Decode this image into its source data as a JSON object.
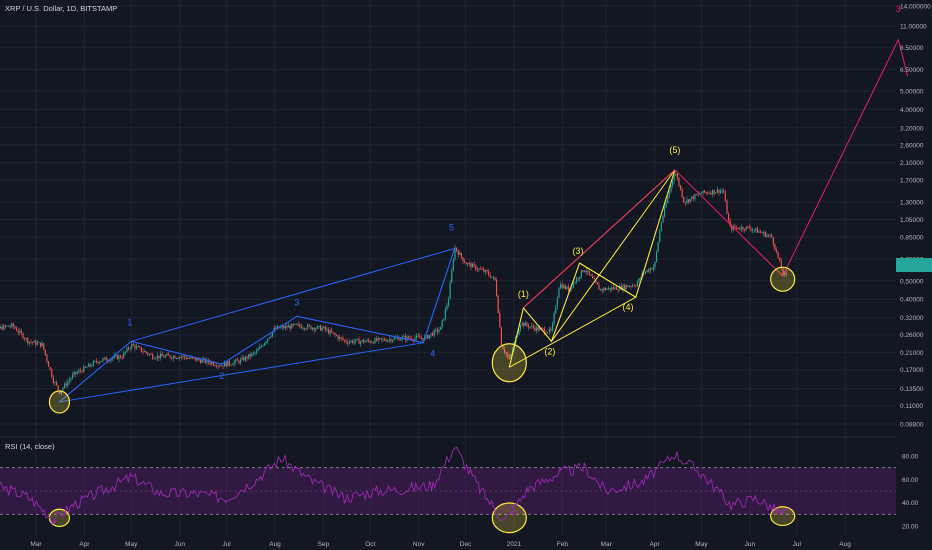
{
  "header": {
    "symbol_title": "XRP / U.S. Dollar, 1D, BITSTAMP"
  },
  "price_badge": "",
  "rsi_title": "RSI (14, close)",
  "colors": {
    "background": "#131722",
    "grid": "#1f2430",
    "up": "#26a69a",
    "down": "#ef5350",
    "blue_wave": "#2962ff",
    "yellow_wave": "#ffeb3b",
    "pink_projection": "#e91e63",
    "rsi_line": "#9c27b0",
    "rsi_band": "#4a1d5c",
    "badge": "#26a69a"
  },
  "chart_data": [
    {
      "type": "candlestick",
      "scale": "log",
      "y_ticks": [
        "14.000000",
        "11.00000",
        "8.50000",
        "6.50000",
        "5.00000",
        "4.00000",
        "3.20000",
        "2.60000",
        "2.10000",
        "1.70000",
        "1.30000",
        "1.05000",
        "0.85000",
        "0.65000",
        "0.50000",
        "0.40000",
        "0.32000",
        "0.26000",
        "0.21000",
        "0.17000",
        "0.13500",
        "0.11000",
        "0.08800"
      ],
      "y_tick_values": [
        14,
        11,
        8.5,
        6.5,
        5,
        4,
        3.2,
        2.6,
        2.1,
        1.7,
        1.3,
        1.05,
        0.85,
        0.65,
        0.5,
        0.4,
        0.32,
        0.26,
        0.21,
        0.17,
        0.135,
        0.11,
        0.088
      ],
      "x_ticks": [
        "Mar",
        "Apr",
        "May",
        "Jun",
        "Jul",
        "Aug",
        "Sep",
        "Oct",
        "Nov",
        "Dec",
        "2021",
        "Feb",
        "Mar",
        "Apr",
        "May",
        "Jun",
        "Jul",
        "Aug"
      ],
      "x_tick_dates": [
        "2020-03-01",
        "2020-04-01",
        "2020-05-01",
        "2020-06-01",
        "2020-07-01",
        "2020-08-01",
        "2020-09-01",
        "2020-10-01",
        "2020-11-01",
        "2020-12-01",
        "2021-01-01",
        "2021-02-01",
        "2021-03-01",
        "2021-04-01",
        "2021-05-01",
        "2021-06-01",
        "2021-07-01",
        "2021-08-01"
      ],
      "price_path": [
        [
          "2020-01-25",
          0.3
        ],
        [
          "2020-02-05",
          0.28
        ],
        [
          "2020-02-15",
          0.29
        ],
        [
          "2020-02-25",
          0.24
        ],
        [
          "2020-03-05",
          0.23
        ],
        [
          "2020-03-12",
          0.15
        ],
        [
          "2020-03-16",
          0.13
        ],
        [
          "2020-03-25",
          0.16
        ],
        [
          "2020-04-10",
          0.19
        ],
        [
          "2020-04-25",
          0.2
        ],
        [
          "2020-05-01",
          0.23
        ],
        [
          "2020-05-15",
          0.2
        ],
        [
          "2020-06-01",
          0.2
        ],
        [
          "2020-06-15",
          0.19
        ],
        [
          "2020-06-28",
          0.18
        ],
        [
          "2020-07-10",
          0.19
        ],
        [
          "2020-07-20",
          0.21
        ],
        [
          "2020-08-01",
          0.28
        ],
        [
          "2020-08-15",
          0.29
        ],
        [
          "2020-09-01",
          0.28
        ],
        [
          "2020-09-15",
          0.24
        ],
        [
          "2020-10-01",
          0.24
        ],
        [
          "2020-10-20",
          0.25
        ],
        [
          "2020-11-05",
          0.25
        ],
        [
          "2020-11-15",
          0.28
        ],
        [
          "2020-11-20",
          0.4
        ],
        [
          "2020-11-24",
          0.75
        ],
        [
          "2020-12-01",
          0.62
        ],
        [
          "2020-12-15",
          0.55
        ],
        [
          "2020-12-20",
          0.5
        ],
        [
          "2020-12-24",
          0.23
        ],
        [
          "2020-12-29",
          0.19
        ],
        [
          "2021-01-05",
          0.3
        ],
        [
          "2021-01-15",
          0.28
        ],
        [
          "2021-01-25",
          0.27
        ],
        [
          "2021-01-30",
          0.48
        ],
        [
          "2021-02-05",
          0.45
        ],
        [
          "2021-02-15",
          0.58
        ],
        [
          "2021-02-25",
          0.45
        ],
        [
          "2021-03-10",
          0.46
        ],
        [
          "2021-03-20",
          0.48
        ],
        [
          "2021-03-25",
          0.55
        ],
        [
          "2021-04-01",
          0.6
        ],
        [
          "2021-04-05",
          1.0
        ],
        [
          "2021-04-14",
          1.9
        ],
        [
          "2021-04-20",
          1.3
        ],
        [
          "2021-05-01",
          1.45
        ],
        [
          "2021-05-15",
          1.5
        ],
        [
          "2021-05-19",
          0.95
        ],
        [
          "2021-06-01",
          0.95
        ],
        [
          "2021-06-15",
          0.85
        ],
        [
          "2021-06-22",
          0.55
        ],
        [
          "2021-06-25",
          0.52
        ]
      ],
      "rsi_levels": [
        80,
        60,
        40,
        20
      ],
      "rsi_bands": [
        70,
        30
      ],
      "rsi_points": [
        [
          "2020-01-25",
          60
        ],
        [
          "2020-02-10",
          52
        ],
        [
          "2020-02-25",
          45
        ],
        [
          "2020-03-13",
          25
        ],
        [
          "2020-03-25",
          38
        ],
        [
          "2020-04-15",
          52
        ],
        [
          "2020-05-01",
          62
        ],
        [
          "2020-05-20",
          48
        ],
        [
          "2020-06-10",
          48
        ],
        [
          "2020-07-01",
          44
        ],
        [
          "2020-07-20",
          60
        ],
        [
          "2020-08-05",
          78
        ],
        [
          "2020-08-25",
          58
        ],
        [
          "2020-09-15",
          44
        ],
        [
          "2020-10-05",
          50
        ],
        [
          "2020-10-25",
          52
        ],
        [
          "2020-11-10",
          55
        ],
        [
          "2020-11-24",
          88
        ],
        [
          "2020-12-10",
          52
        ],
        [
          "2020-12-26",
          24
        ],
        [
          "2021-01-10",
          52
        ],
        [
          "2021-01-31",
          66
        ],
        [
          "2021-02-15",
          70
        ],
        [
          "2021-03-01",
          50
        ],
        [
          "2021-03-25",
          58
        ],
        [
          "2021-04-14",
          82
        ],
        [
          "2021-05-01",
          65
        ],
        [
          "2021-05-20",
          38
        ],
        [
          "2021-06-05",
          44
        ],
        [
          "2021-06-22",
          30
        ],
        [
          "2021-06-26",
          32
        ]
      ],
      "annotations": [
        {
          "label": "1",
          "date": "2020-04-30",
          "price": 0.29
        },
        {
          "label": "2",
          "date": "2020-06-28",
          "price": 0.152
        },
        {
          "label": "3",
          "date": "2020-08-15",
          "price": 0.37
        },
        {
          "label": "4",
          "date": "2020-11-10",
          "price": 0.2
        },
        {
          "label": "5",
          "date": "2020-11-22",
          "price": 0.92
        },
        {
          "label": "(1)",
          "date": "2021-01-07",
          "price": 0.41
        },
        {
          "label": "(2)",
          "date": "2021-01-24",
          "price": 0.205
        },
        {
          "label": "(3)",
          "date": "2021-02-11",
          "price": 0.69
        },
        {
          "label": "(4)",
          "date": "2021-03-15",
          "price": 0.35
        },
        {
          "label": "(5)",
          "date": "2021-04-14",
          "price": 2.35
        },
        {
          "label": "3",
          "date": "2021-09-04",
          "price": 13.0
        }
      ]
    }
  ]
}
